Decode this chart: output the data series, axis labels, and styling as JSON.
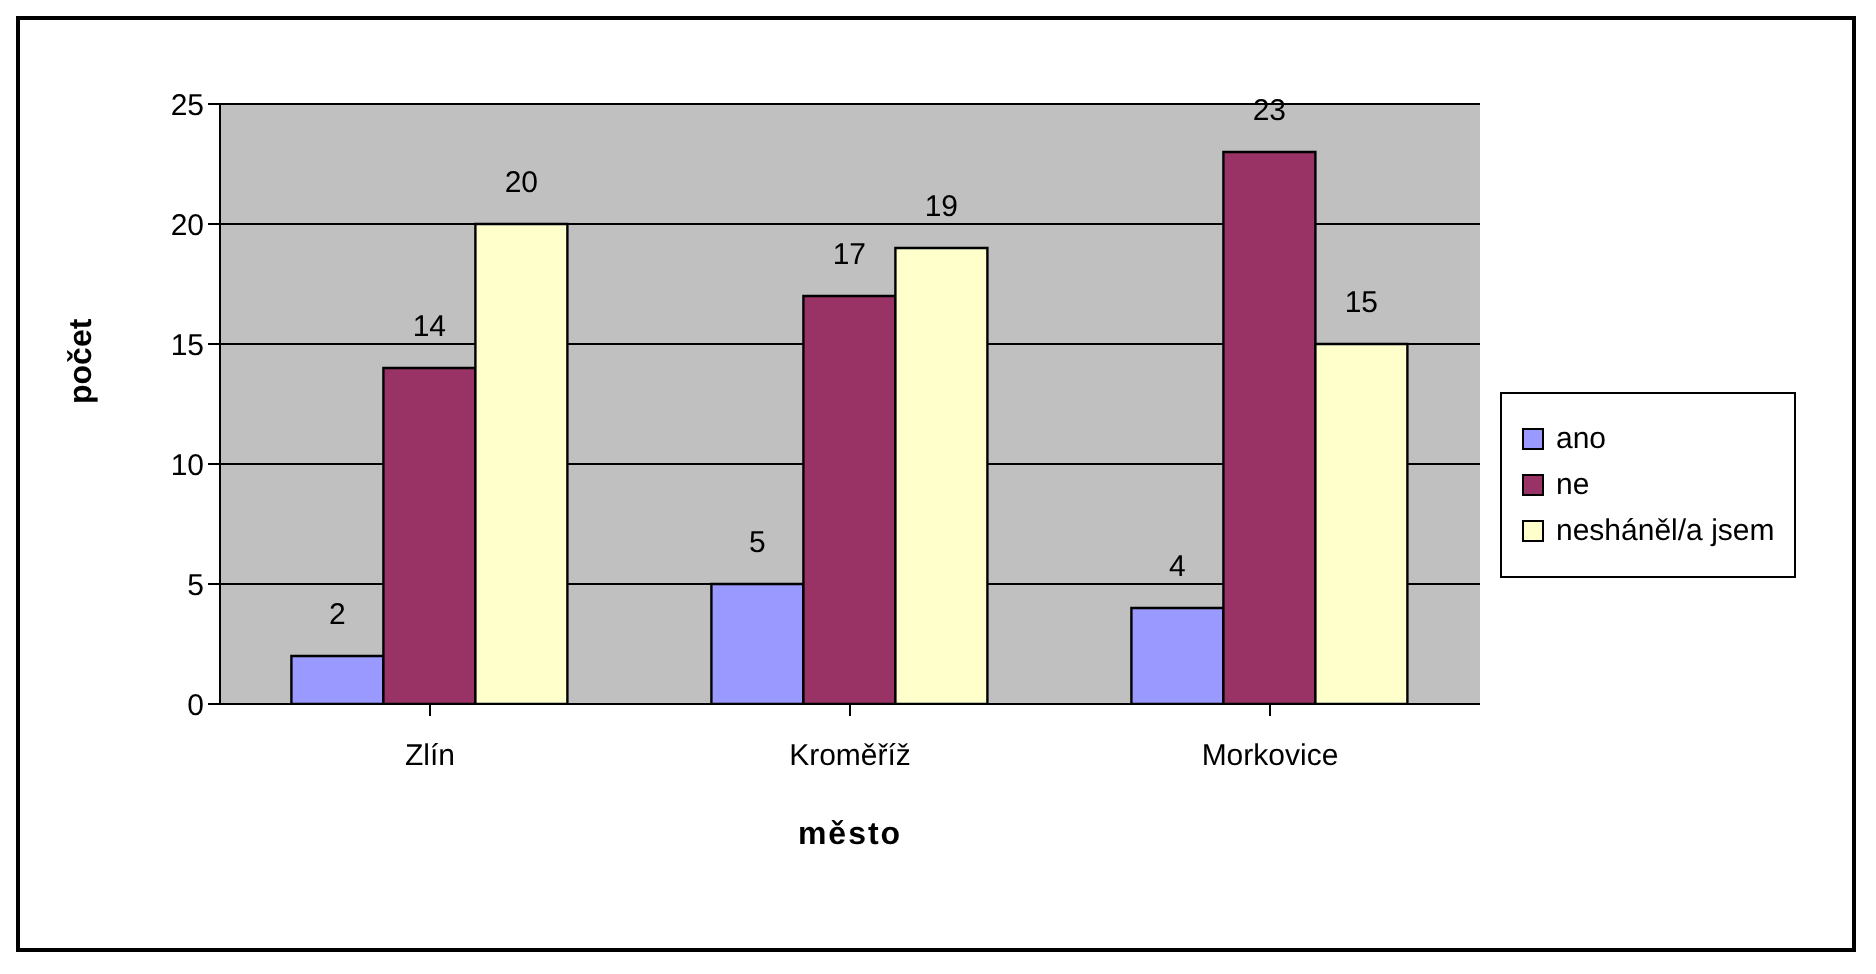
{
  "chart_data": {
    "type": "bar",
    "xlabel": "město",
    "ylabel": "počet",
    "categories": [
      "Zlín",
      "Kroměříž",
      "Morkovice"
    ],
    "series": [
      {
        "name": "ano",
        "color": "#9999ff",
        "values": [
          2,
          5,
          4
        ]
      },
      {
        "name": "ne",
        "color": "#993366",
        "values": [
          14,
          17,
          23
        ]
      },
      {
        "name": "nesháněl/a jsem",
        "color": "#ffffcc",
        "values": [
          20,
          19,
          15
        ]
      }
    ],
    "ylim": [
      0,
      25
    ],
    "yticks": [
      0,
      5,
      10,
      15,
      20,
      25
    ],
    "grid": "y",
    "legend": "right",
    "data_labels": true
  }
}
